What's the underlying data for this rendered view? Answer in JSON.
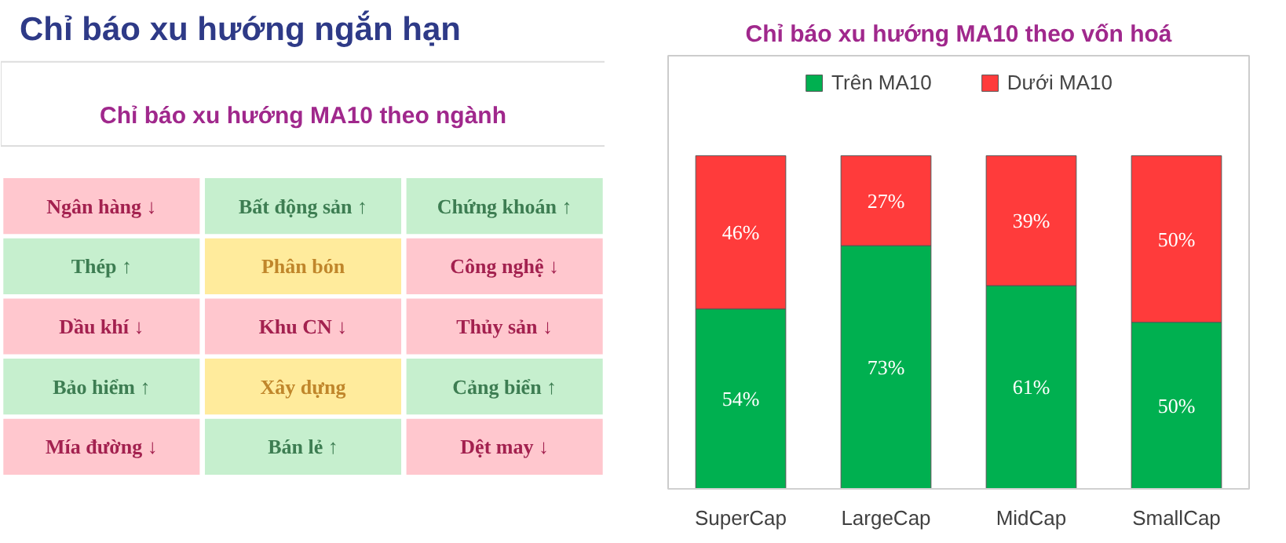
{
  "chart_data": [
    {
      "type": "other",
      "title": "Chỉ báo xu hướng ngắn hạn",
      "subtitle": "Chỉ báo xu hướng MA10 theo ngành",
      "annotations": [
        "Ngân hàng ↓",
        "Bất động sản ↑",
        "Chứng khoán ↑",
        "Thép ↑",
        "Phân bón",
        "Công nghệ ↓",
        "Dầu khí ↓",
        "Khu CN ↓",
        "Thủy sản ↓",
        "Bảo hiểm ↑",
        "Xây dựng",
        "Cảng biển ↑",
        "Mía đường ↓",
        "Bán lẻ ↑",
        "Dệt may ↓"
      ],
      "colors": [
        "#ffc7ce",
        "#c6efce",
        "#c6efce",
        "#c6efce",
        "#ffeb9c",
        "#ffc7ce",
        "#ffc7ce",
        "#ffc7ce",
        "#ffc7ce",
        "#c6efce",
        "#ffeb9c",
        "#c6efce",
        "#ffc7ce",
        "#c6efce",
        "#ffc7ce"
      ]
    },
    {
      "type": "bar",
      "title": "Chỉ báo xu hướng MA10 theo vốn hoá",
      "stacked": true,
      "legend": "top",
      "tick_labels": "x",
      "categories": [
        "SuperCap",
        "LargeCap",
        "MidCap",
        "SmallCap"
      ],
      "series": [
        {
          "name": "Trên MA10",
          "color": "#00b050",
          "values": [
            54,
            73,
            61,
            50
          ],
          "value_labels": [
            "54%",
            "73%",
            "61%",
            "50%"
          ]
        },
        {
          "name": "Dưới MA10",
          "color": "#ff3b3b",
          "values": [
            46,
            27,
            39,
            50
          ],
          "value_labels": [
            "46%",
            "27%",
            "39%",
            "50%"
          ]
        }
      ]
    }
  ]
}
